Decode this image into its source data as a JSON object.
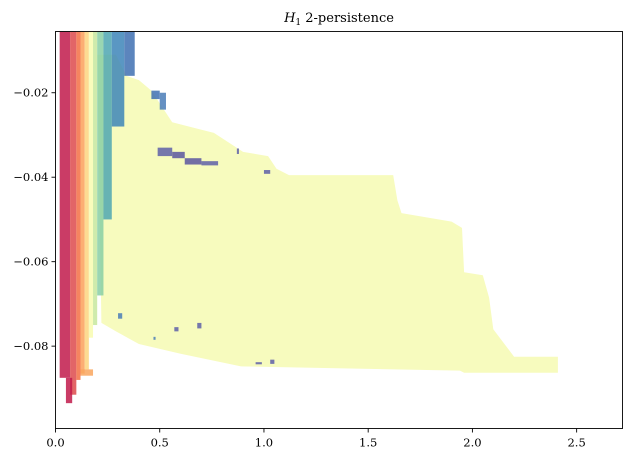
{
  "chart_data": {
    "type": "heatmap",
    "title": "H₁ 2-persistence",
    "title_math": "H",
    "title_sub": "1",
    "title_rest": " 2-persistence",
    "xlabel": "",
    "ylabel": "",
    "xlim": [
      0.0,
      2.72
    ],
    "ylim": [
      -0.0995,
      -0.0055
    ],
    "x_ticks": [
      0.0,
      0.5,
      1.0,
      1.5,
      2.0,
      2.5
    ],
    "x_tick_labels": [
      "0.0",
      "0.5",
      "1.0",
      "1.5",
      "2.0",
      "2.5"
    ],
    "y_ticks": [
      -0.02,
      -0.04,
      -0.06,
      -0.08
    ],
    "y_tick_labels": [
      "−0.02",
      "−0.04",
      "−0.06",
      "−0.08"
    ],
    "grid": false,
    "legend": "none",
    "colormap": "Spectral",
    "summand_outline": {
      "color": "#f7fbbe",
      "x": [
        0.2,
        0.29,
        0.34,
        0.4,
        0.46,
        0.56,
        0.76,
        0.9,
        1.02,
        1.06,
        1.12,
        1.62,
        1.64,
        1.66,
        1.9,
        1.95,
        1.96,
        2.05,
        2.08,
        2.1,
        2.2,
        2.41,
        2.41,
        1.96,
        1.94,
        0.89,
        0.6,
        0.4,
        0.29,
        0.22,
        0.2
      ],
      "y": [
        -0.011,
        -0.011,
        -0.016,
        -0.017,
        -0.0195,
        -0.027,
        -0.0295,
        -0.034,
        -0.035,
        -0.038,
        -0.0395,
        -0.0395,
        -0.0455,
        -0.0485,
        -0.0505,
        -0.052,
        -0.0625,
        -0.0632,
        -0.0685,
        -0.076,
        -0.0825,
        -0.0825,
        -0.0863,
        -0.0863,
        -0.0858,
        -0.0848,
        -0.0818,
        -0.0795,
        -0.0765,
        -0.0745,
        -0.011
      ]
    },
    "streaks": [
      {
        "x0": 0.02,
        "x1": 0.07,
        "y0": -0.0055,
        "y1": -0.0875,
        "color": "#c11a4b"
      },
      {
        "x0": 0.07,
        "x1": 0.1,
        "y0": -0.0055,
        "y1": -0.0915,
        "color": "#dd4a4c"
      },
      {
        "x0": 0.1,
        "x1": 0.12,
        "y0": -0.0055,
        "y1": -0.088,
        "color": "#f36e43"
      },
      {
        "x0": 0.12,
        "x1": 0.14,
        "y0": -0.0055,
        "y1": -0.0865,
        "color": "#fba05b"
      },
      {
        "x0": 0.14,
        "x1": 0.16,
        "y0": -0.0055,
        "y1": -0.0855,
        "color": "#fdd57f"
      },
      {
        "x0": 0.16,
        "x1": 0.18,
        "y0": -0.0055,
        "y1": -0.078,
        "color": "#f8fbb0"
      },
      {
        "x0": 0.18,
        "x1": 0.2,
        "y0": -0.0055,
        "y1": -0.075,
        "color": "#c7e89e"
      },
      {
        "x0": 0.2,
        "x1": 0.23,
        "y0": -0.0055,
        "y1": -0.068,
        "color": "#88cfa4"
      },
      {
        "x0": 0.23,
        "x1": 0.27,
        "y0": -0.0055,
        "y1": -0.05,
        "color": "#4ea6b1"
      },
      {
        "x0": 0.27,
        "x1": 0.33,
        "y0": -0.0055,
        "y1": -0.028,
        "color": "#3d85b9"
      },
      {
        "x0": 0.33,
        "x1": 0.38,
        "y0": -0.0055,
        "y1": -0.016,
        "color": "#3f70b1"
      },
      {
        "x0": 0.05,
        "x1": 0.08,
        "y0": -0.0875,
        "y1": -0.0935,
        "color": "#c11a4b"
      },
      {
        "x0": 0.12,
        "x1": 0.18,
        "y0": -0.0855,
        "y1": -0.087,
        "color": "#f9a65e"
      }
    ],
    "stray_marks": [
      {
        "x0": 0.46,
        "x1": 0.5,
        "y0": -0.0195,
        "y1": -0.0215,
        "color": "#3f70b1"
      },
      {
        "x0": 0.5,
        "x1": 0.53,
        "y0": -0.02,
        "y1": -0.024,
        "color": "#4a7cb7"
      },
      {
        "x0": 0.49,
        "x1": 0.56,
        "y0": -0.033,
        "y1": -0.035,
        "color": "#5e5fa8"
      },
      {
        "x0": 0.56,
        "x1": 0.62,
        "y0": -0.034,
        "y1": -0.0355,
        "color": "#5a55a0"
      },
      {
        "x0": 0.62,
        "x1": 0.7,
        "y0": -0.0355,
        "y1": -0.037,
        "color": "#5a55a0"
      },
      {
        "x0": 0.7,
        "x1": 0.78,
        "y0": -0.0362,
        "y1": -0.0372,
        "color": "#5e5fa8"
      },
      {
        "x0": 0.87,
        "x1": 0.88,
        "y0": -0.0332,
        "y1": -0.0345,
        "color": "#5e5fa8"
      },
      {
        "x0": 1.0,
        "x1": 1.03,
        "y0": -0.0383,
        "y1": -0.0392,
        "color": "#5e5fa8"
      },
      {
        "x0": 0.3,
        "x1": 0.32,
        "y0": -0.0722,
        "y1": -0.0735,
        "color": "#4a7cb7"
      },
      {
        "x0": 0.47,
        "x1": 0.48,
        "y0": -0.0778,
        "y1": -0.0785,
        "color": "#4a7cb7"
      },
      {
        "x0": 0.57,
        "x1": 0.59,
        "y0": -0.0755,
        "y1": -0.0765,
        "color": "#5e5fa8"
      },
      {
        "x0": 0.68,
        "x1": 0.7,
        "y0": -0.0745,
        "y1": -0.0758,
        "color": "#5e5fa8"
      },
      {
        "x0": 0.96,
        "x1": 0.99,
        "y0": -0.0838,
        "y1": -0.0843,
        "color": "#5e5fa8"
      },
      {
        "x0": 1.03,
        "x1": 1.05,
        "y0": -0.0832,
        "y1": -0.0842,
        "color": "#5e5fa8"
      }
    ]
  }
}
